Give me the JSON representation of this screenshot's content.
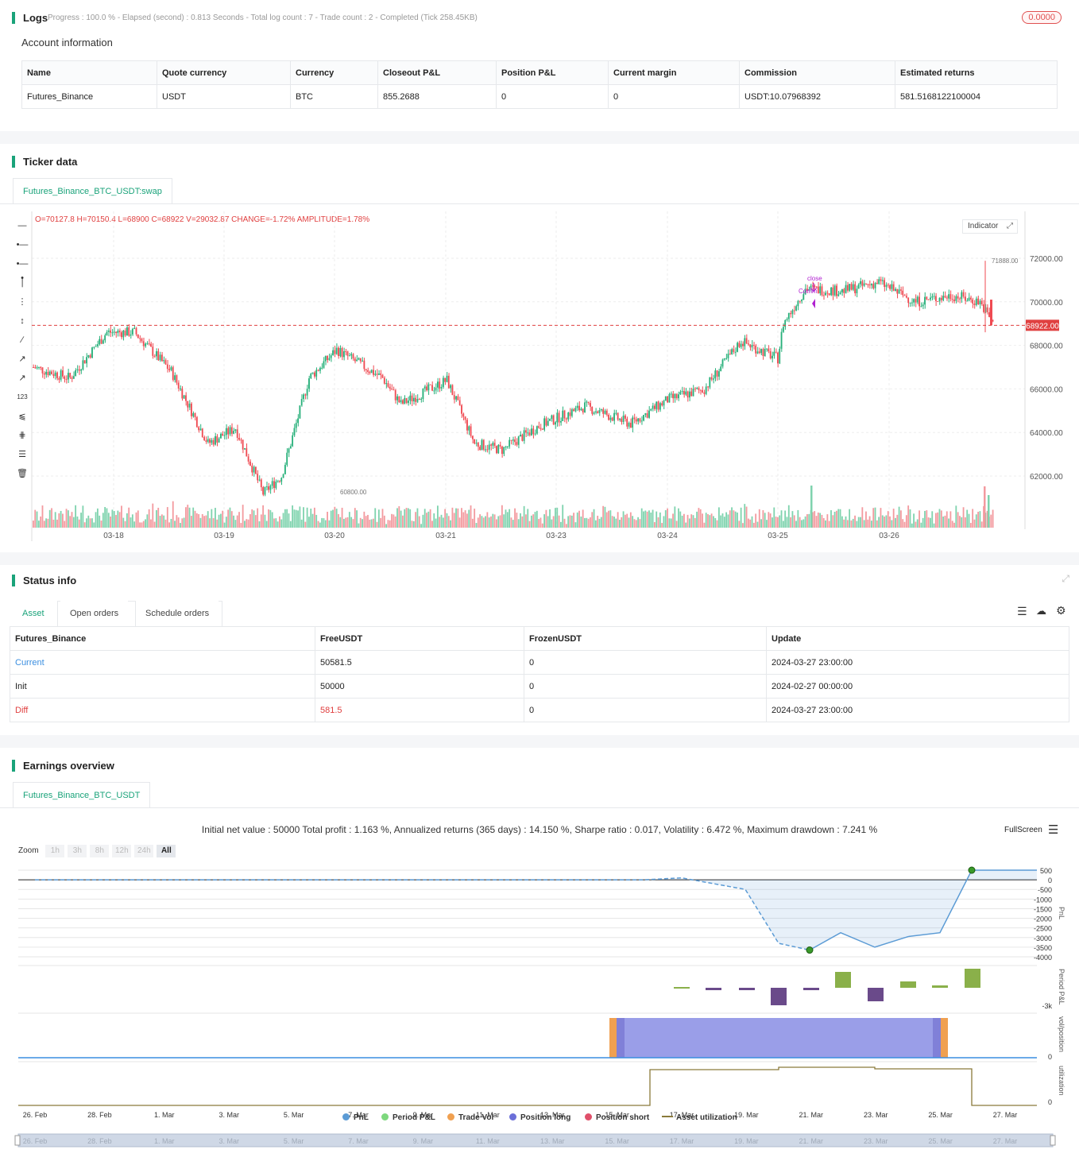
{
  "logs": {
    "title": "Logs",
    "status": "Progress : 100.0 % - Elapsed (second) : 0.813  Seconds - Total log count : 7 - Trade count : 2 - Completed (Tick 258.45KB)",
    "badge": "0.0000"
  },
  "account": {
    "title": "Account information",
    "columns": [
      "Name",
      "Quote currency",
      "Currency",
      "Closeout P&L",
      "Position P&L",
      "Current margin",
      "Commission",
      "Estimated returns"
    ],
    "row": [
      "Futures_Binance",
      "USDT",
      "BTC",
      "855.2688",
      "0",
      "0",
      "USDT:10.07968392",
      "581.5168122100004"
    ]
  },
  "ticker": {
    "title": "Ticker data",
    "tab": "Futures_Binance_BTC_USDT:swap",
    "ohlc_prefix": "O=",
    "ohlc": "O=70127.8 H=70150.4 L=68900 C=68922 V=29032.87 CHANGE=-1.72% AMPLITUDE=1.78%",
    "indicator_btn": "Indicator",
    "price_labels": [
      "72000.00",
      "70000.00",
      "68000.00",
      "66000.00",
      "64000.00",
      "62000.00"
    ],
    "x_labels": [
      "03-18",
      "03-19",
      "03-20",
      "03-21",
      "03-23",
      "03-24",
      "03-25",
      "03-26"
    ],
    "current_price": "68922.00",
    "high_mark": "71888.00",
    "low_mark": "60800.00",
    "annot_close": "close",
    "annot_comm": "Comm"
  },
  "status": {
    "title": "Status info",
    "tabs": [
      "Asset",
      "Open orders",
      "Schedule orders"
    ],
    "columns": [
      "Futures_Binance",
      "FreeUSDT",
      "FrozenUSDT",
      "Update"
    ],
    "rows": [
      {
        "label": "Current",
        "free": "50581.5",
        "frozen": "0",
        "update": "2024-03-27 23:00:00"
      },
      {
        "label": "Init",
        "free": "50000",
        "frozen": "0",
        "update": "2024-02-27 00:00:00"
      },
      {
        "label": "Diff",
        "free": "581.5",
        "frozen": "0",
        "update": "2024-03-27 23:00:00"
      }
    ]
  },
  "earnings": {
    "title": "Earnings overview",
    "tab": "Futures_Binance_BTC_USDT",
    "summary": "Initial net value : 50000 Total profit : 1.163 %, Annualized returns (365 days) : 14.150 %, Sharpe ratio : 0.017, Volatility : 6.472 %, Maximum drawdown : 7.241 %",
    "fullscreen": "FullScreen",
    "zoom_label": "Zoom",
    "zoom_buttons": [
      "1h",
      "3h",
      "8h",
      "12h",
      "24h",
      "All"
    ],
    "pnl_ticks": [
      "500",
      "0",
      "-500",
      "-1000",
      "-1500",
      "-2000",
      "-2500",
      "-3000",
      "-3500",
      "-4000"
    ],
    "axis_titles": [
      "PnL",
      "Period P&L",
      "vol/position",
      "utilization"
    ],
    "period_tick": "-3k",
    "vol_tick": "0",
    "util_tick": "0",
    "x_labels": [
      "26. Feb",
      "28. Feb",
      "1. Mar",
      "3. Mar",
      "5. Mar",
      "7. Mar",
      "9. Mar",
      "11. Mar",
      "13. Mar",
      "15. Mar",
      "17. Mar",
      "19. Mar",
      "21. Mar",
      "23. Mar",
      "25. Mar",
      "27. Mar"
    ],
    "legend": [
      {
        "label": "PnL",
        "color": "#5b9bd5"
      },
      {
        "label": "Period P&L",
        "color": "#7dd87d"
      },
      {
        "label": "Trade Vol",
        "color": "#f0a050"
      },
      {
        "label": "Position long",
        "color": "#6b6fd8"
      },
      {
        "label": "Position short",
        "color": "#e0506a"
      },
      {
        "label": "Asset utilization",
        "color": "#8a7a3a"
      }
    ]
  }
}
